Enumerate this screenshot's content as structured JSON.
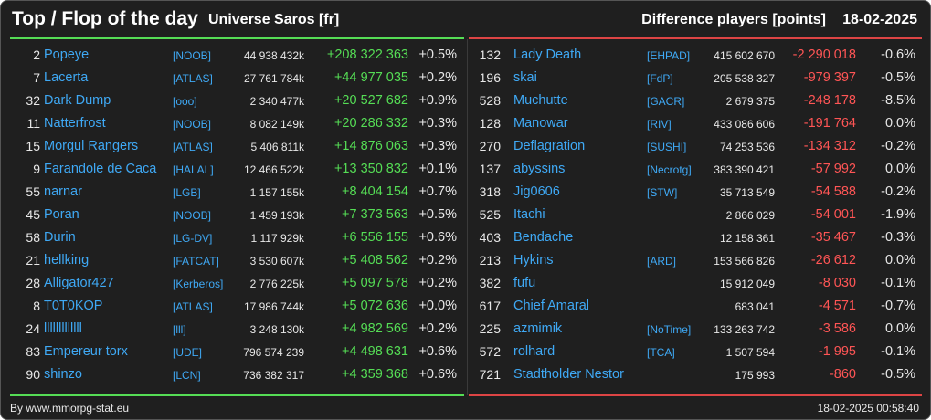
{
  "header": {
    "title": "Top / Flop of the day",
    "universe": "Universe Saros [fr]",
    "metric": "Difference players [points]",
    "date": "18-02-2025"
  },
  "colors": {
    "top": "#55dd55",
    "flop": "#dd4444",
    "link": "#3fa9f5"
  },
  "top": [
    {
      "rank": "2",
      "name": "Popeye",
      "tag": "[NOOB]",
      "points": "44 938 432k",
      "delta": "+208 322 363",
      "pct": "+0.5%"
    },
    {
      "rank": "7",
      "name": "Lacerta",
      "tag": "[ATLAS]",
      "points": "27 761 784k",
      "delta": "+44 977 035",
      "pct": "+0.2%"
    },
    {
      "rank": "32",
      "name": "Dark Dump",
      "tag": "[ooo]",
      "points": "2 340 477k",
      "delta": "+20 527 682",
      "pct": "+0.9%"
    },
    {
      "rank": "11",
      "name": "Natterfrost",
      "tag": "[NOOB]",
      "points": "8 082 149k",
      "delta": "+20 286 332",
      "pct": "+0.3%"
    },
    {
      "rank": "15",
      "name": "Morgul Rangers",
      "tag": "[ATLAS]",
      "points": "5 406 811k",
      "delta": "+14 876 063",
      "pct": "+0.3%"
    },
    {
      "rank": "9",
      "name": "Farandole de Caca",
      "tag": "[HALAL]",
      "points": "12 466 522k",
      "delta": "+13 350 832",
      "pct": "+0.1%"
    },
    {
      "rank": "55",
      "name": "narnar",
      "tag": "[LGB]",
      "points": "1 157 155k",
      "delta": "+8 404 154",
      "pct": "+0.7%"
    },
    {
      "rank": "45",
      "name": "Poran",
      "tag": "[NOOB]",
      "points": "1 459 193k",
      "delta": "+7 373 563",
      "pct": "+0.5%"
    },
    {
      "rank": "58",
      "name": "Durin",
      "tag": "[LG-DV]",
      "points": "1 117 929k",
      "delta": "+6 556 155",
      "pct": "+0.6%"
    },
    {
      "rank": "21",
      "name": "hellking",
      "tag": "[FATCAT]",
      "points": "3 530 607k",
      "delta": "+5 408 562",
      "pct": "+0.2%"
    },
    {
      "rank": "28",
      "name": "Alligator427",
      "tag": "[Kerberos]",
      "points": "2 776 225k",
      "delta": "+5 097 578",
      "pct": "+0.2%"
    },
    {
      "rank": "8",
      "name": "T0T0KOP",
      "tag": "[ATLAS]",
      "points": "17 986 744k",
      "delta": "+5 072 636",
      "pct": "+0.0%"
    },
    {
      "rank": "24",
      "name": "lllllllllllll",
      "tag": "[lll]",
      "points": "3 248 130k",
      "delta": "+4 982 569",
      "pct": "+0.2%"
    },
    {
      "rank": "83",
      "name": "Empereur torx",
      "tag": "[UDE]",
      "points": "796 574 239",
      "delta": "+4 498 631",
      "pct": "+0.6%"
    },
    {
      "rank": "90",
      "name": "shinzo",
      "tag": "[LCN]",
      "points": "736 382 317",
      "delta": "+4 359 368",
      "pct": "+0.6%"
    }
  ],
  "flop": [
    {
      "rank": "132",
      "name": "Lady Death",
      "tag": "[EHPAD]",
      "points": "415 602 670",
      "delta": "-2 290 018",
      "pct": "-0.6%"
    },
    {
      "rank": "196",
      "name": "skai",
      "tag": "[FdP]",
      "points": "205 538 327",
      "delta": "-979 397",
      "pct": "-0.5%"
    },
    {
      "rank": "528",
      "name": "Muchutte",
      "tag": "[GACR]",
      "points": "2 679 375",
      "delta": "-248 178",
      "pct": "-8.5%"
    },
    {
      "rank": "128",
      "name": "Manowar",
      "tag": "[RIV]",
      "points": "433 086 606",
      "delta": "-191 764",
      "pct": "0.0%"
    },
    {
      "rank": "270",
      "name": "Deflagration",
      "tag": "[SUSHI]",
      "points": "74 253 536",
      "delta": "-134 312",
      "pct": "-0.2%"
    },
    {
      "rank": "137",
      "name": "abyssins",
      "tag": "[Necrotg]",
      "points": "383 390 421",
      "delta": "-57 992",
      "pct": "0.0%"
    },
    {
      "rank": "318",
      "name": "Jig0606",
      "tag": "[STW]",
      "points": "35 713 549",
      "delta": "-54 588",
      "pct": "-0.2%"
    },
    {
      "rank": "525",
      "name": "Itachi",
      "tag": "",
      "points": "2 866 029",
      "delta": "-54 001",
      "pct": "-1.9%"
    },
    {
      "rank": "403",
      "name": "Bendache",
      "tag": "",
      "points": "12 158 361",
      "delta": "-35 467",
      "pct": "-0.3%"
    },
    {
      "rank": "213",
      "name": "Hykins",
      "tag": "[ARD]",
      "points": "153 566 826",
      "delta": "-26 612",
      "pct": "0.0%"
    },
    {
      "rank": "382",
      "name": "fufu",
      "tag": "",
      "points": "15 912 049",
      "delta": "-8 030",
      "pct": "-0.1%"
    },
    {
      "rank": "617",
      "name": "Chief Amaral",
      "tag": "",
      "points": "683 041",
      "delta": "-4 571",
      "pct": "-0.7%"
    },
    {
      "rank": "225",
      "name": "azmimik",
      "tag": "[NoTime]",
      "points": "133 263 742",
      "delta": "-3 586",
      "pct": "0.0%"
    },
    {
      "rank": "572",
      "name": "rolhard",
      "tag": "[TCA]",
      "points": "1 507 594",
      "delta": "-1 995",
      "pct": "-0.1%"
    },
    {
      "rank": "721",
      "name": "Stadtholder Nestor",
      "tag": "",
      "points": "175 993",
      "delta": "-860",
      "pct": "-0.5%"
    }
  ],
  "footer": {
    "source": "By www.mmorpg-stat.eu",
    "timestamp": "18-02-2025 00:58:40"
  }
}
